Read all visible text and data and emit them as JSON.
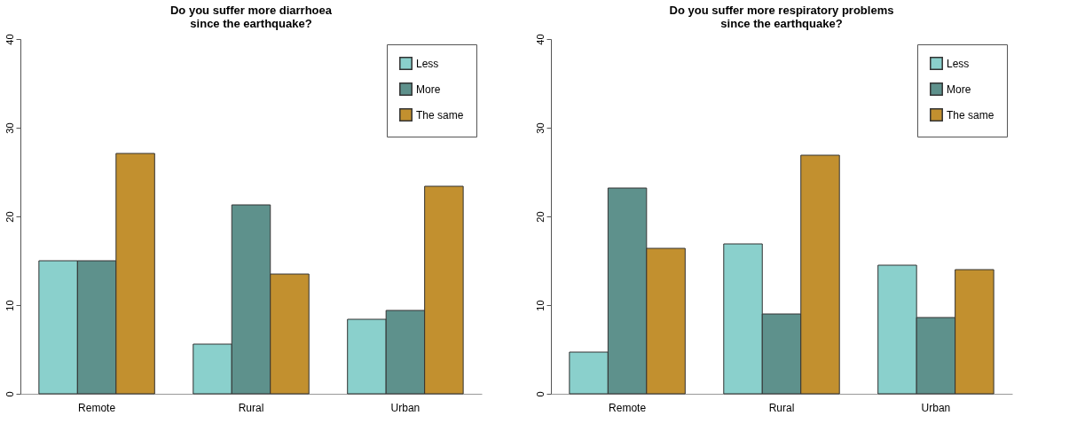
{
  "chart_data": [
    {
      "type": "bar",
      "title": [
        "Do you suffer more diarrhoea",
        "since the earthquake?"
      ],
      "categories": [
        "Remote",
        "Rural",
        "Urban"
      ],
      "series": [
        {
          "name": "Less",
          "color": "#8ad0cc",
          "values": [
            15.0,
            5.6,
            8.4
          ]
        },
        {
          "name": "More",
          "color": "#5e918c",
          "values": [
            15.0,
            21.3,
            9.4
          ]
        },
        {
          "name": "The same",
          "color": "#c2902f",
          "values": [
            27.1,
            13.5,
            23.4
          ]
        }
      ],
      "ylim": [
        0,
        40
      ],
      "yticks": [
        0,
        10,
        20,
        30,
        40
      ],
      "grid": false,
      "legend": "top right"
    },
    {
      "type": "bar",
      "title": [
        "Do you suffer more respiratory problems",
        "since the earthquake?"
      ],
      "categories": [
        "Remote",
        "Rural",
        "Urban"
      ],
      "series": [
        {
          "name": "Less",
          "color": "#8ad0cc",
          "values": [
            4.7,
            16.9,
            14.5
          ]
        },
        {
          "name": "More",
          "color": "#5e918c",
          "values": [
            23.2,
            9.0,
            8.6
          ]
        },
        {
          "name": "The same",
          "color": "#c2902f",
          "values": [
            16.4,
            26.9,
            14.0
          ]
        }
      ],
      "ylim": [
        0,
        40
      ],
      "yticks": [
        0,
        10,
        20,
        30,
        40
      ],
      "grid": false,
      "legend": "top right"
    }
  ]
}
